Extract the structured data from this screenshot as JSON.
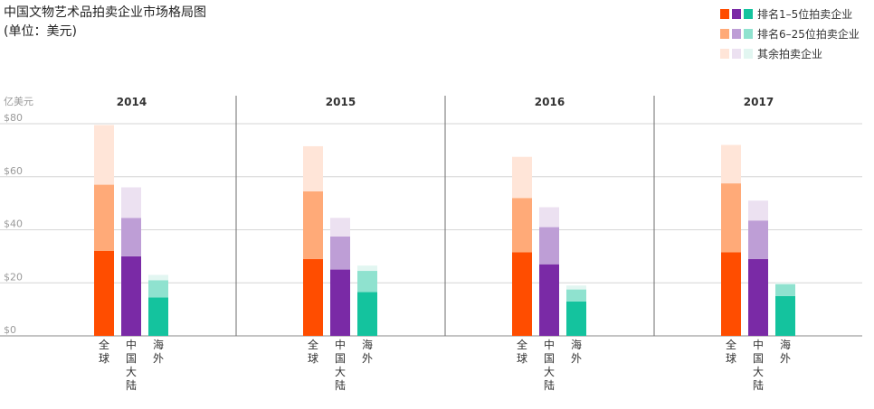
{
  "title_lines": [
    "中国文物艺术品拍卖企业市场格局图",
    "(单位：美元)"
  ],
  "legend": [
    {
      "label": "排名1–5位拍卖企业",
      "colors": [
        "#FF4D00",
        "#7A2AA6",
        "#14C39E"
      ]
    },
    {
      "label": "排名6–25位拍卖企业",
      "colors": [
        "#FFAA78",
        "#BE9ED6",
        "#8FE2CF"
      ]
    },
    {
      "label": "其余拍卖企业",
      "colors": [
        "#FFE5D8",
        "#ECE1F1",
        "#E2F6F1"
      ]
    }
  ],
  "chart_data": {
    "type": "bar",
    "stacked": true,
    "ylabel": "亿美元",
    "ylim": [
      0,
      80
    ],
    "yticks": [
      0,
      20,
      40,
      60,
      80
    ],
    "ytick_labels": [
      "$0",
      "$20",
      "$40",
      "$60",
      "$80"
    ],
    "grid": true,
    "years": [
      "2014",
      "2015",
      "2016",
      "2017"
    ],
    "categories": [
      "全球",
      "中国大陆",
      "海外"
    ],
    "category_colors": [
      [
        "#FF4D00",
        "#FFAA78",
        "#FFE5D8"
      ],
      [
        "#7A2AA6",
        "#BE9ED6",
        "#ECE1F1"
      ],
      [
        "#14C39E",
        "#8FE2CF",
        "#E2F6F1"
      ]
    ],
    "series": [
      {
        "name": "排名1–5位拍卖企业",
        "values": [
          [
            32,
            30,
            14.5
          ],
          [
            29,
            25,
            16.5
          ],
          [
            31.5,
            27,
            13
          ],
          [
            31.5,
            29,
            15
          ]
        ]
      },
      {
        "name": "排名6–25位拍卖企业",
        "values": [
          [
            25,
            14.5,
            6.5
          ],
          [
            25.5,
            12.5,
            8
          ],
          [
            20.5,
            14,
            4.5
          ],
          [
            26,
            14.5,
            4.5
          ]
        ]
      },
      {
        "name": "其余拍卖企业",
        "values": [
          [
            22.5,
            11.5,
            2
          ],
          [
            17,
            7,
            2
          ],
          [
            15.5,
            7.5,
            1.5
          ],
          [
            14.5,
            7.5,
            0.5
          ]
        ]
      }
    ]
  }
}
